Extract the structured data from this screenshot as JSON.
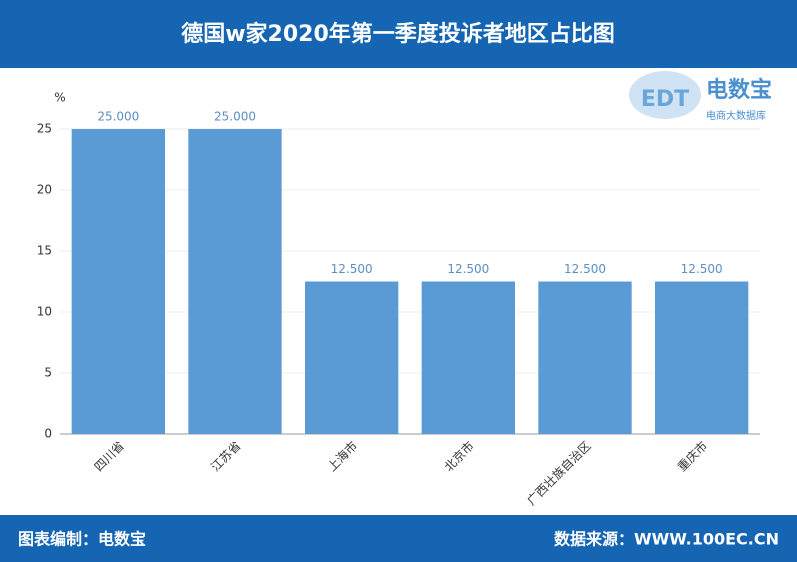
{
  "chart_data": {
    "type": "bar",
    "title": "德国w家2020年第一季度投诉者地区占比图",
    "y_label": "%",
    "categories": [
      "四川省",
      "江苏省",
      "上海市",
      "北京市",
      "广西壮族自治区",
      "重庆市"
    ],
    "values": [
      25,
      25,
      12.5,
      12.5,
      12.5,
      12.5
    ],
    "value_labels": [
      "25.000",
      "25.000",
      "12.500",
      "12.500",
      "12.500",
      "12.500"
    ],
    "color": "#5b9bd5",
    "ylim": [
      0,
      25
    ],
    "yticks": [
      0,
      5,
      10,
      15,
      20,
      25
    ],
    "grid": true,
    "logo": {
      "mark": "EDT",
      "name": "电数宝",
      "tagline": "电商大数据库"
    },
    "footer_left": "图表编制：电数宝",
    "footer_right": "数据来源：WWW.100EC.CN"
  }
}
